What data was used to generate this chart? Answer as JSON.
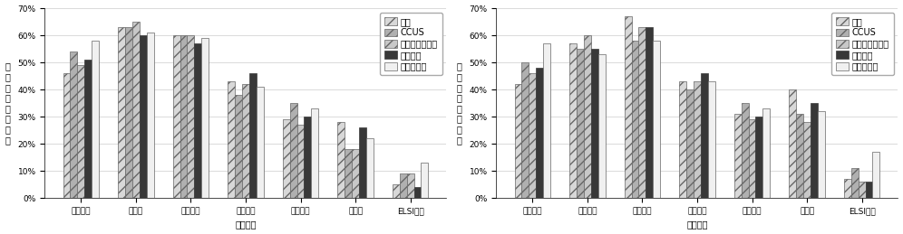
{
  "chart1": {
    "categories": [
      "人材育成",
      "研究費",
      "基盤整備",
      "国内連携",
      "国際連携",
      "法規制",
      "ELSI対応"
    ],
    "series": {
      "水素": [
        0.46,
        0.63,
        0.6,
        0.43,
        0.29,
        0.28,
        0.05
      ],
      "CCUS": [
        0.54,
        0.63,
        0.6,
        0.38,
        0.35,
        0.18,
        0.09
      ],
      "再エネ・蓄エネ": [
        0.49,
        0.65,
        0.6,
        0.42,
        0.27,
        0.18,
        0.09
      ],
      "パワエレ": [
        0.51,
        0.6,
        0.57,
        0.46,
        0.3,
        0.26,
        0.04
      ],
      "全トピック": [
        0.58,
        0.61,
        0.59,
        0.41,
        0.33,
        0.22,
        0.13
      ]
    },
    "ylabel": "回答者の選択割合",
    "xlabel": "政策手段",
    "ylim": [
      0,
      0.7
    ]
  },
  "chart2": {
    "categories": [
      "人材育成",
      "事業補助",
      "環境整備",
      "国内連携",
      "国際連携",
      "法規制",
      "ELSI対応"
    ],
    "series": {
      "水素": [
        0.42,
        0.57,
        0.67,
        0.43,
        0.31,
        0.4,
        0.07
      ],
      "CCUS": [
        0.5,
        0.55,
        0.58,
        0.4,
        0.35,
        0.31,
        0.11
      ],
      "再エネ・蓄エネ": [
        0.46,
        0.6,
        0.63,
        0.43,
        0.29,
        0.28,
        0.06
      ],
      "パワエレ": [
        0.48,
        0.55,
        0.63,
        0.46,
        0.3,
        0.35,
        0.06
      ],
      "全トピック": [
        0.57,
        0.53,
        0.58,
        0.43,
        0.33,
        0.32,
        0.17
      ]
    },
    "ylabel": "回答者の選択割合",
    "xlabel": "政策手段",
    "ylim": [
      0,
      0.7
    ]
  },
  "legend_labels": [
    "水素",
    "CCUS",
    "再エネ・蓄エネ",
    "パワエレ",
    "全トピック"
  ],
  "bar_width": 0.13,
  "fontsize_axis": 7,
  "fontsize_tick": 6.5,
  "fontsize_legend": 7,
  "colors_map": {
    "水素": {
      "color": "#d8d8d8",
      "hatch": "///",
      "edgecolor": "#666666"
    },
    "CCUS": {
      "color": "#b0b0b0",
      "hatch": "///",
      "edgecolor": "#666666"
    },
    "再エネ・蓄エネ": {
      "color": "#c8c8c8",
      "hatch": "///",
      "edgecolor": "#666666"
    },
    "パワエレ": {
      "color": "#383838",
      "hatch": "",
      "edgecolor": "#383838"
    },
    "全トピック": {
      "color": "#f0f0f0",
      "hatch": "",
      "edgecolor": "#666666"
    }
  }
}
